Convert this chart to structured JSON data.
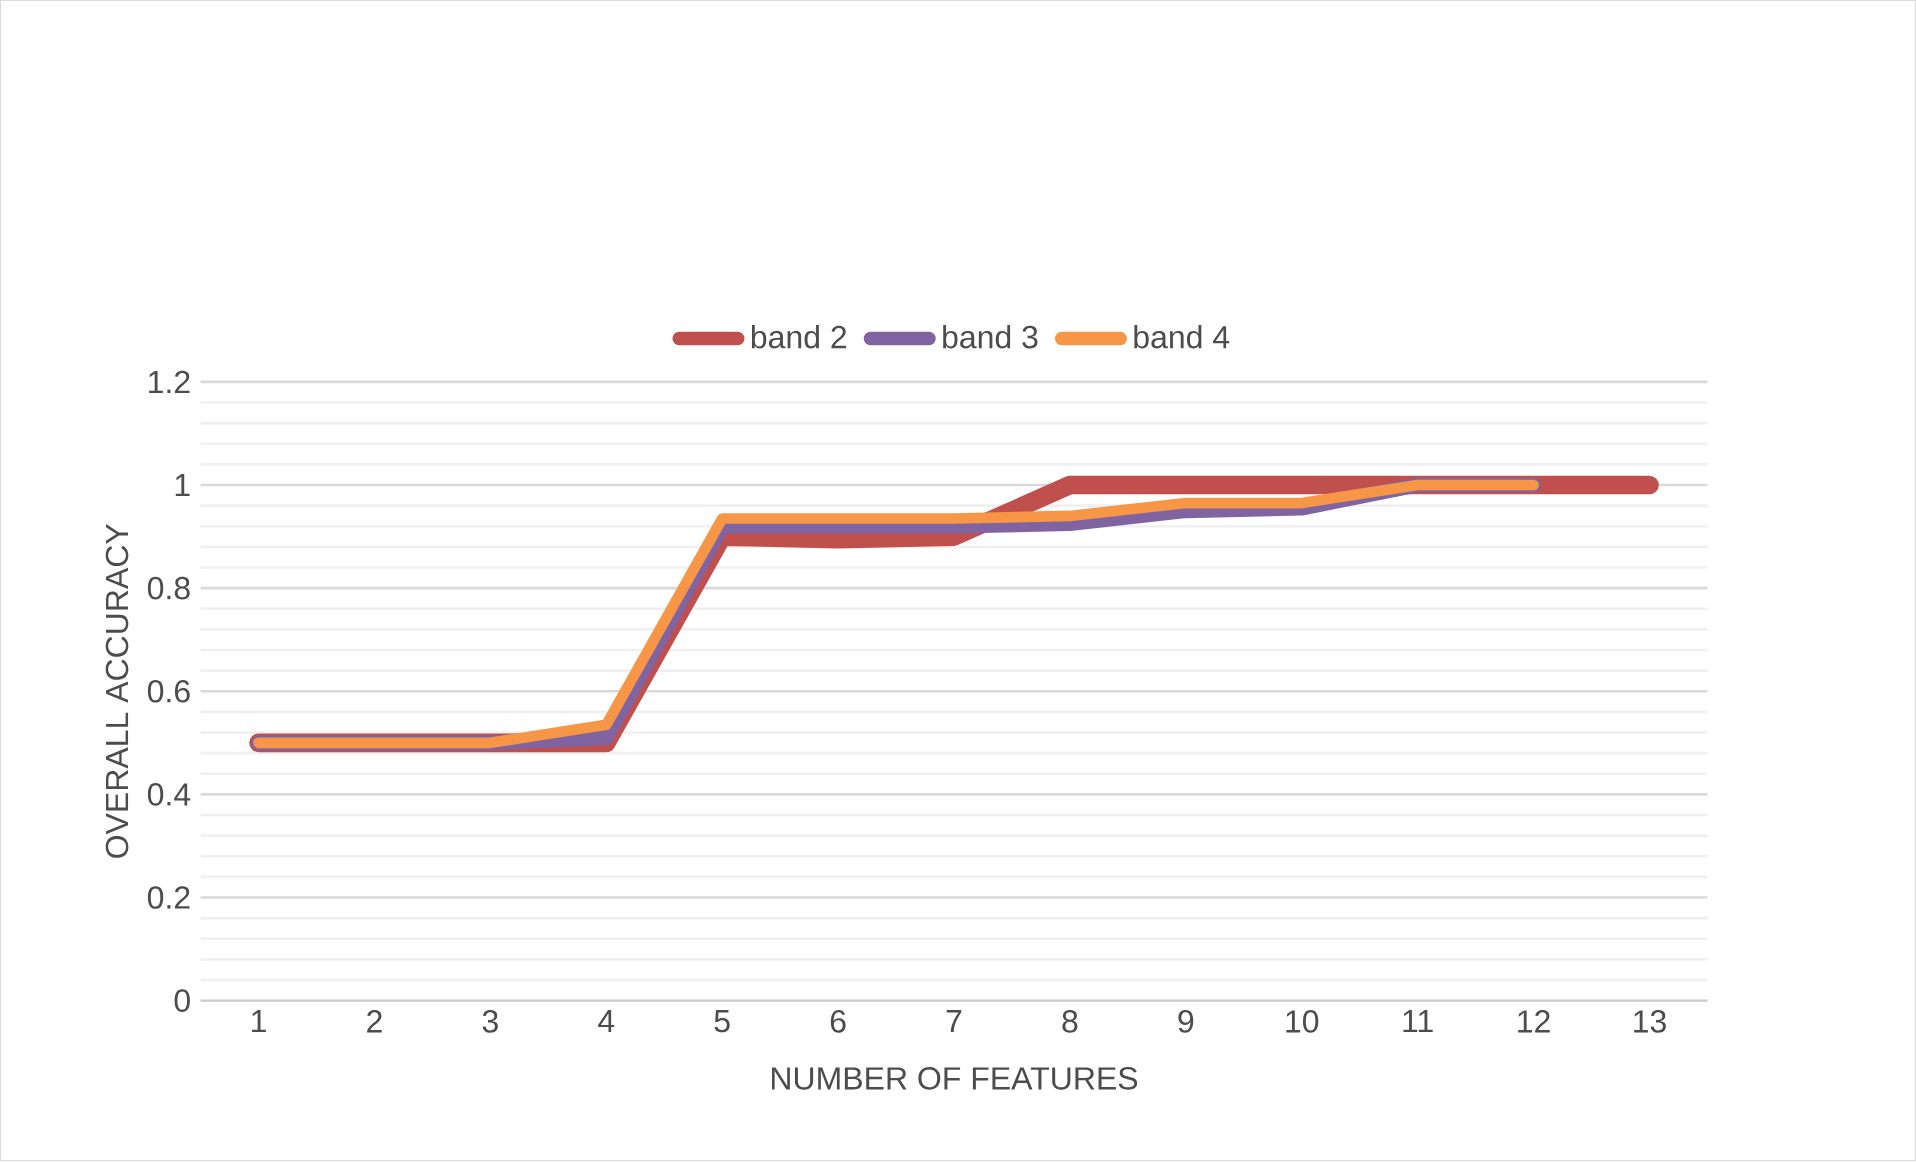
{
  "chart_data": {
    "type": "line",
    "xlabel": "NUMBER OF FEATURES",
    "ylabel": "OVERALL ACCURACY",
    "categories": [
      "1",
      "2",
      "3",
      "4",
      "5",
      "6",
      "7",
      "8",
      "9",
      "10",
      "11",
      "12",
      "13"
    ],
    "series": [
      {
        "name": "band 2",
        "color": "#c0504d",
        "values": [
          0.5,
          0.5,
          0.5,
          0.5,
          0.9,
          0.895,
          0.9,
          1,
          1,
          1,
          1,
          1,
          1
        ]
      },
      {
        "name": "band 3",
        "color": "#8064a2",
        "values": [
          0.5,
          0.5,
          0.5,
          0.51,
          0.92,
          0.92,
          0.92,
          0.925,
          0.95,
          0.955,
          1,
          1,
          null
        ]
      },
      {
        "name": "band 4",
        "color": "#f79646",
        "values": [
          0.5,
          0.5,
          0.5,
          0.535,
          0.935,
          0.935,
          0.935,
          0.94,
          0.965,
          0.965,
          1,
          1,
          null
        ]
      }
    ],
    "ylim": [
      0,
      1.2
    ],
    "yticks": [
      0,
      0.2,
      0.4,
      0.6,
      0.8,
      1,
      1.2
    ],
    "grid": "y",
    "legend": "top",
    "marker": "none",
    "line_style": "solid"
  }
}
